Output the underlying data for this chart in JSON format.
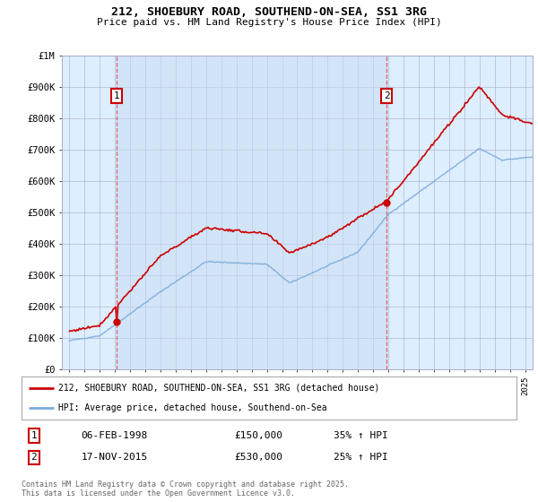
{
  "title1": "212, SHOEBURY ROAD, SOUTHEND-ON-SEA, SS1 3RG",
  "title2": "Price paid vs. HM Land Registry's House Price Index (HPI)",
  "background_color": "#ffffff",
  "chart_bg_color": "#ddeeff",
  "grid_color": "#bbbbcc",
  "red_color": "#cc0000",
  "blue_color": "#7aabdd",
  "sale1_year": 1998.09,
  "sale1_price": 150000,
  "sale2_year": 2015.88,
  "sale2_price": 530000,
  "legend_line1": "212, SHOEBURY ROAD, SOUTHEND-ON-SEA, SS1 3RG (detached house)",
  "legend_line2": "HPI: Average price, detached house, Southend-on-Sea",
  "sale1_label": "1",
  "sale2_label": "2",
  "sale1_date": "06-FEB-1998",
  "sale1_amount": "£150,000",
  "sale1_hpi": "35% ↑ HPI",
  "sale2_date": "17-NOV-2015",
  "sale2_amount": "£530,000",
  "sale2_hpi": "25% ↑ HPI",
  "copyright": "Contains HM Land Registry data © Crown copyright and database right 2025.\nThis data is licensed under the Open Government Licence v3.0.",
  "ylim": [
    0,
    1000000
  ],
  "xlim_start": 1994.5,
  "xlim_end": 2025.5
}
